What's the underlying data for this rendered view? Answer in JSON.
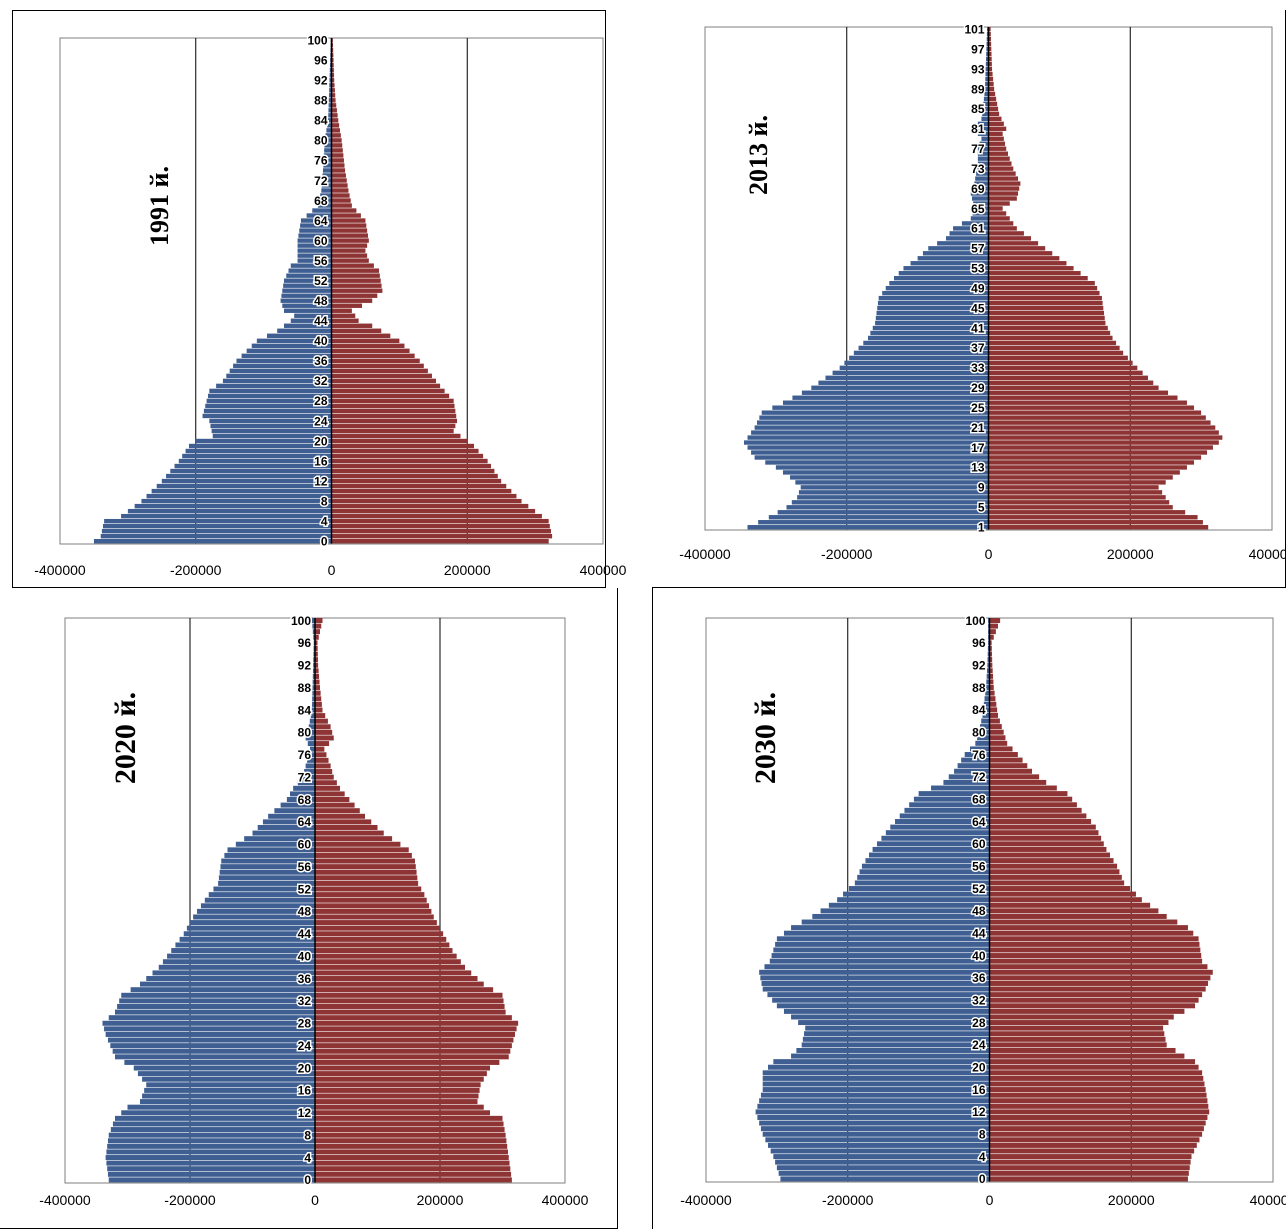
{
  "colors": {
    "male": "#3F5F92",
    "female": "#8E3434",
    "axis": "#7F7F7F",
    "grid": "#000000"
  },
  "x_ticks": [
    "-400000",
    "-200000",
    "0",
    "200000",
    "400000"
  ],
  "chart_data": [
    {
      "type": "bar",
      "orientation": "horizontal",
      "title": "1991 й.",
      "xlim": [
        -400000,
        400000
      ],
      "y_tick_labels": [
        "0",
        "4",
        "8",
        "12",
        "16",
        "20",
        "24",
        "28",
        "32",
        "36",
        "40",
        "44",
        "48",
        "52",
        "56",
        "60",
        "64",
        "68",
        "72",
        "76",
        "80",
        "84",
        "88",
        "92",
        "96",
        "100"
      ],
      "age_min": 0,
      "age_max": 100,
      "male_knots": [
        [
          0,
          -350000
        ],
        [
          1,
          -340000
        ],
        [
          4,
          -335000
        ],
        [
          5,
          -310000
        ],
        [
          8,
          -280000
        ],
        [
          12,
          -250000
        ],
        [
          16,
          -225000
        ],
        [
          19,
          -210000
        ],
        [
          20,
          -200000
        ],
        [
          21,
          -175000
        ],
        [
          24,
          -180000
        ],
        [
          25,
          -190000
        ],
        [
          30,
          -180000
        ],
        [
          32,
          -160000
        ],
        [
          36,
          -140000
        ],
        [
          40,
          -110000
        ],
        [
          42,
          -80000
        ],
        [
          44,
          -60000
        ],
        [
          45,
          -55000
        ],
        [
          46,
          -70000
        ],
        [
          48,
          -75000
        ],
        [
          52,
          -70000
        ],
        [
          55,
          -60000
        ],
        [
          56,
          -50000
        ],
        [
          60,
          -50000
        ],
        [
          64,
          -45000
        ],
        [
          67,
          -20000
        ],
        [
          70,
          -15000
        ],
        [
          75,
          -12000
        ],
        [
          80,
          -10000
        ],
        [
          84,
          -5000
        ],
        [
          88,
          -4000
        ],
        [
          92,
          -3000
        ],
        [
          96,
          -2000
        ],
        [
          100,
          -1000
        ]
      ],
      "female_knots": [
        [
          0,
          320000
        ],
        [
          1,
          325000
        ],
        [
          4,
          320000
        ],
        [
          5,
          310000
        ],
        [
          8,
          280000
        ],
        [
          12,
          250000
        ],
        [
          16,
          230000
        ],
        [
          19,
          210000
        ],
        [
          20,
          200000
        ],
        [
          21,
          190000
        ],
        [
          22,
          180000
        ],
        [
          24,
          185000
        ],
        [
          28,
          180000
        ],
        [
          31,
          160000
        ],
        [
          36,
          130000
        ],
        [
          40,
          100000
        ],
        [
          43,
          60000
        ],
        [
          44,
          40000
        ],
        [
          46,
          30000
        ],
        [
          48,
          60000
        ],
        [
          50,
          75000
        ],
        [
          54,
          70000
        ],
        [
          56,
          55000
        ],
        [
          58,
          50000
        ],
        [
          60,
          55000
        ],
        [
          64,
          50000
        ],
        [
          67,
          30000
        ],
        [
          70,
          25000
        ],
        [
          74,
          20000
        ],
        [
          80,
          15000
        ],
        [
          84,
          10000
        ],
        [
          88,
          6000
        ],
        [
          92,
          4000
        ],
        [
          96,
          3000
        ],
        [
          100,
          2000
        ]
      ]
    },
    {
      "type": "bar",
      "orientation": "horizontal",
      "title": "2013 й.",
      "xlim": [
        -400000,
        400000
      ],
      "y_tick_labels": [
        "1",
        "5",
        "9",
        "13",
        "17",
        "21",
        "25",
        "29",
        "33",
        "37",
        "41",
        "45",
        "49",
        "53",
        "57",
        "61",
        "65",
        "69",
        "73",
        "77",
        "81",
        "85",
        "89",
        "93",
        "97",
        "101"
      ],
      "age_min": 1,
      "age_max": 101,
      "male_knots": [
        [
          1,
          -340000
        ],
        [
          3,
          -310000
        ],
        [
          5,
          -285000
        ],
        [
          7,
          -270000
        ],
        [
          9,
          -265000
        ],
        [
          11,
          -280000
        ],
        [
          13,
          -300000
        ],
        [
          15,
          -330000
        ],
        [
          18,
          -345000
        ],
        [
          21,
          -330000
        ],
        [
          24,
          -320000
        ],
        [
          26,
          -290000
        ],
        [
          29,
          -250000
        ],
        [
          33,
          -210000
        ],
        [
          36,
          -190000
        ],
        [
          39,
          -170000
        ],
        [
          42,
          -160000
        ],
        [
          47,
          -155000
        ],
        [
          50,
          -140000
        ],
        [
          53,
          -120000
        ],
        [
          55,
          -100000
        ],
        [
          57,
          -85000
        ],
        [
          59,
          -60000
        ],
        [
          61,
          -50000
        ],
        [
          63,
          -25000
        ],
        [
          65,
          -20000
        ],
        [
          68,
          -25000
        ],
        [
          70,
          -20000
        ],
        [
          74,
          -15000
        ],
        [
          77,
          -15000
        ],
        [
          79,
          -10000
        ],
        [
          81,
          -20000
        ],
        [
          83,
          -10000
        ],
        [
          85,
          -8000
        ],
        [
          89,
          -5000
        ],
        [
          93,
          -4000
        ],
        [
          97,
          -3000
        ],
        [
          101,
          -2000
        ]
      ],
      "female_knots": [
        [
          1,
          310000
        ],
        [
          3,
          295000
        ],
        [
          5,
          260000
        ],
        [
          7,
          250000
        ],
        [
          9,
          240000
        ],
        [
          11,
          260000
        ],
        [
          13,
          280000
        ],
        [
          15,
          300000
        ],
        [
          18,
          325000
        ],
        [
          19,
          330000
        ],
        [
          21,
          320000
        ],
        [
          24,
          300000
        ],
        [
          26,
          280000
        ],
        [
          29,
          240000
        ],
        [
          33,
          210000
        ],
        [
          36,
          190000
        ],
        [
          39,
          175000
        ],
        [
          42,
          165000
        ],
        [
          47,
          160000
        ],
        [
          50,
          150000
        ],
        [
          53,
          120000
        ],
        [
          55,
          100000
        ],
        [
          57,
          80000
        ],
        [
          59,
          60000
        ],
        [
          61,
          40000
        ],
        [
          63,
          30000
        ],
        [
          65,
          20000
        ],
        [
          67,
          40000
        ],
        [
          70,
          45000
        ],
        [
          73,
          35000
        ],
        [
          77,
          25000
        ],
        [
          80,
          20000
        ],
        [
          81,
          25000
        ],
        [
          84,
          15000
        ],
        [
          89,
          8000
        ],
        [
          93,
          5000
        ],
        [
          97,
          4000
        ],
        [
          101,
          3000
        ]
      ]
    },
    {
      "type": "bar",
      "orientation": "horizontal",
      "title": "2020 й.",
      "xlim": [
        -400000,
        400000
      ],
      "y_tick_labels": [
        "0",
        "4",
        "8",
        "12",
        "16",
        "20",
        "24",
        "28",
        "32",
        "36",
        "40",
        "44",
        "48",
        "52",
        "56",
        "60",
        "64",
        "68",
        "72",
        "76",
        "80",
        "84",
        "88",
        "92",
        "96",
        "100"
      ],
      "age_min": 0,
      "age_max": 100,
      "male_knots": [
        [
          0,
          -330000
        ],
        [
          4,
          -335000
        ],
        [
          8,
          -330000
        ],
        [
          11,
          -320000
        ],
        [
          13,
          -300000
        ],
        [
          14,
          -280000
        ],
        [
          17,
          -270000
        ],
        [
          20,
          -290000
        ],
        [
          22,
          -320000
        ],
        [
          26,
          -335000
        ],
        [
          28,
          -340000
        ],
        [
          30,
          -320000
        ],
        [
          33,
          -310000
        ],
        [
          35,
          -280000
        ],
        [
          38,
          -250000
        ],
        [
          41,
          -230000
        ],
        [
          44,
          -210000
        ],
        [
          47,
          -195000
        ],
        [
          51,
          -170000
        ],
        [
          53,
          -155000
        ],
        [
          57,
          -150000
        ],
        [
          59,
          -140000
        ],
        [
          62,
          -100000
        ],
        [
          65,
          -75000
        ],
        [
          68,
          -45000
        ],
        [
          70,
          -35000
        ],
        [
          72,
          -20000
        ],
        [
          74,
          -15000
        ],
        [
          77,
          -8000
        ],
        [
          79,
          -15000
        ],
        [
          81,
          -10000
        ],
        [
          84,
          -5000
        ],
        [
          88,
          -4000
        ],
        [
          92,
          -3000
        ],
        [
          96,
          -2000
        ],
        [
          100,
          -5000
        ]
      ],
      "female_knots": [
        [
          0,
          315000
        ],
        [
          4,
          310000
        ],
        [
          8,
          305000
        ],
        [
          11,
          300000
        ],
        [
          12,
          280000
        ],
        [
          14,
          260000
        ],
        [
          17,
          265000
        ],
        [
          20,
          280000
        ],
        [
          22,
          310000
        ],
        [
          26,
          320000
        ],
        [
          28,
          325000
        ],
        [
          30,
          305000
        ],
        [
          33,
          300000
        ],
        [
          35,
          270000
        ],
        [
          38,
          240000
        ],
        [
          41,
          220000
        ],
        [
          44,
          205000
        ],
        [
          47,
          190000
        ],
        [
          51,
          175000
        ],
        [
          53,
          165000
        ],
        [
          57,
          160000
        ],
        [
          59,
          150000
        ],
        [
          62,
          110000
        ],
        [
          65,
          80000
        ],
        [
          68,
          55000
        ],
        [
          70,
          40000
        ],
        [
          72,
          30000
        ],
        [
          74,
          25000
        ],
        [
          77,
          15000
        ],
        [
          79,
          30000
        ],
        [
          81,
          25000
        ],
        [
          84,
          12000
        ],
        [
          88,
          8000
        ],
        [
          92,
          5000
        ],
        [
          96,
          4000
        ],
        [
          100,
          12000
        ]
      ]
    },
    {
      "type": "bar",
      "orientation": "horizontal",
      "title": "2030 й.",
      "xlim": [
        -400000,
        400000
      ],
      "y_tick_labels": [
        "0",
        "4",
        "8",
        "12",
        "16",
        "20",
        "24",
        "28",
        "32",
        "36",
        "40",
        "44",
        "48",
        "52",
        "56",
        "60",
        "64",
        "68",
        "72",
        "76",
        "80",
        "84",
        "88",
        "92",
        "96",
        "100"
      ],
      "age_min": 0,
      "age_max": 100,
      "male_knots": [
        [
          0,
          -295000
        ],
        [
          4,
          -305000
        ],
        [
          8,
          -320000
        ],
        [
          12,
          -330000
        ],
        [
          16,
          -320000
        ],
        [
          19,
          -320000
        ],
        [
          21,
          -305000
        ],
        [
          22,
          -280000
        ],
        [
          24,
          -265000
        ],
        [
          27,
          -260000
        ],
        [
          29,
          -280000
        ],
        [
          31,
          -300000
        ],
        [
          34,
          -320000
        ],
        [
          37,
          -325000
        ],
        [
          39,
          -310000
        ],
        [
          43,
          -300000
        ],
        [
          45,
          -280000
        ],
        [
          47,
          -250000
        ],
        [
          50,
          -215000
        ],
        [
          53,
          -190000
        ],
        [
          56,
          -180000
        ],
        [
          59,
          -165000
        ],
        [
          63,
          -140000
        ],
        [
          66,
          -120000
        ],
        [
          69,
          -100000
        ],
        [
          71,
          -65000
        ],
        [
          73,
          -50000
        ],
        [
          76,
          -35000
        ],
        [
          78,
          -20000
        ],
        [
          80,
          -15000
        ],
        [
          83,
          -10000
        ],
        [
          88,
          -5000
        ],
        [
          92,
          -3000
        ],
        [
          96,
          -2000
        ],
        [
          100,
          -2000
        ]
      ],
      "female_knots": [
        [
          0,
          280000
        ],
        [
          4,
          285000
        ],
        [
          8,
          300000
        ],
        [
          12,
          310000
        ],
        [
          16,
          305000
        ],
        [
          19,
          300000
        ],
        [
          21,
          290000
        ],
        [
          22,
          275000
        ],
        [
          24,
          250000
        ],
        [
          27,
          245000
        ],
        [
          29,
          260000
        ],
        [
          31,
          290000
        ],
        [
          34,
          305000
        ],
        [
          37,
          315000
        ],
        [
          39,
          300000
        ],
        [
          43,
          295000
        ],
        [
          45,
          280000
        ],
        [
          47,
          250000
        ],
        [
          50,
          215000
        ],
        [
          53,
          190000
        ],
        [
          56,
          180000
        ],
        [
          59,
          165000
        ],
        [
          63,
          150000
        ],
        [
          66,
          130000
        ],
        [
          69,
          110000
        ],
        [
          71,
          80000
        ],
        [
          73,
          60000
        ],
        [
          76,
          40000
        ],
        [
          78,
          25000
        ],
        [
          80,
          20000
        ],
        [
          83,
          12000
        ],
        [
          88,
          6000
        ],
        [
          92,
          4000
        ],
        [
          96,
          3000
        ],
        [
          100,
          15000
        ]
      ]
    }
  ]
}
